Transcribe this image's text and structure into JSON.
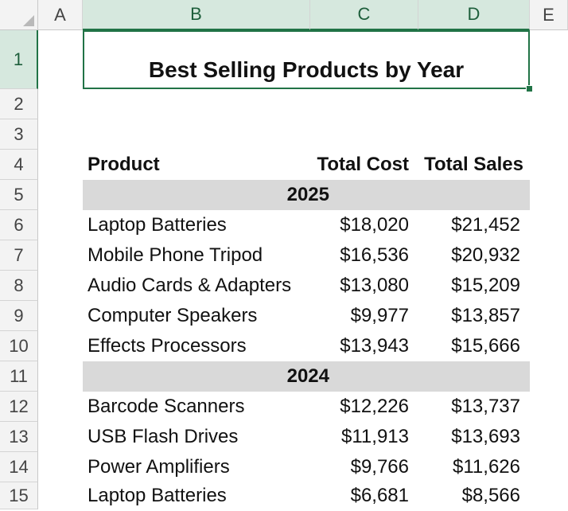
{
  "columns": [
    "A",
    "B",
    "C",
    "D",
    "E"
  ],
  "rows": [
    "1",
    "2",
    "3",
    "4",
    "5",
    "6",
    "7",
    "8",
    "9",
    "10",
    "11",
    "12",
    "13",
    "14",
    "15"
  ],
  "sheet": {
    "title": "Best Selling Products by Year",
    "headers": {
      "product": "Product",
      "cost": "Total Cost",
      "sales": "Total Sales"
    },
    "groups": [
      {
        "year": "2025",
        "items": [
          {
            "product": "Laptop Batteries",
            "cost": "$18,020",
            "sales": "$21,452"
          },
          {
            "product": "Mobile Phone Tripod",
            "cost": "$16,536",
            "sales": "$20,932"
          },
          {
            "product": "Audio Cards & Adapters",
            "cost": "$13,080",
            "sales": "$15,209"
          },
          {
            "product": "Computer Speakers",
            "cost": "$9,977",
            "sales": "$13,857"
          },
          {
            "product": "Effects Processors",
            "cost": "$13,943",
            "sales": "$15,666"
          }
        ]
      },
      {
        "year": "2024",
        "items": [
          {
            "product": "Barcode Scanners",
            "cost": "$12,226",
            "sales": "$13,737"
          },
          {
            "product": "USB Flash Drives",
            "cost": "$11,913",
            "sales": "$13,693"
          },
          {
            "product": "Power Amplifiers",
            "cost": "$9,766",
            "sales": "$11,626"
          },
          {
            "product": "Laptop Batteries",
            "cost": "$6,681",
            "sales": "$8,566"
          }
        ]
      }
    ]
  },
  "colors": {
    "selection": "#217346",
    "band": "#d9d9d9",
    "header_bg": "#f3f3f3"
  }
}
